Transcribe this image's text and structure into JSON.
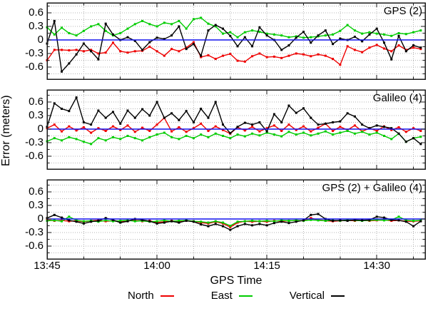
{
  "figure": {
    "xlabel": "GPS Time",
    "ylabel": "Error (meters)"
  },
  "axis": {
    "x_tick_labels": [
      "13:45",
      "14:00",
      "14:15",
      "14:30"
    ],
    "x_tick_minutes": [
      0,
      15,
      30,
      45
    ],
    "x_minor_step_minutes": 5,
    "x_total_minutes": 51.6,
    "y_tick_labels": [
      "0.6",
      "0.3",
      "0",
      "-0.3",
      "-0.6"
    ],
    "y_tick_values": [
      0.6,
      0.3,
      0,
      -0.3,
      -0.6
    ],
    "y_minor_step": 0.15,
    "ylim": [
      -0.85,
      0.85
    ],
    "grid": "dotted, on major and minor ticks"
  },
  "colors": {
    "north": "#ee0000",
    "east": "#00cc00",
    "vertical": "#000000",
    "zero_line": "#1414ee",
    "grid": "#b4b4b4",
    "border": "#1a1a1a"
  },
  "legend": {
    "items": [
      {
        "label": "North",
        "color": "#ee0000"
      },
      {
        "label": "East",
        "color": "#00cc00"
      },
      {
        "label": "Vertical",
        "color": "#000000"
      }
    ]
  },
  "chart_data": [
    {
      "type": "line",
      "title": "GPS (2)",
      "x_start_label": "13:45",
      "x_step_minutes": 1,
      "n_points": 52,
      "ylim": [
        -0.85,
        0.85
      ],
      "zero_reference_line": 0,
      "series": [
        {
          "name": "North",
          "color": "#ee0000",
          "values": [
            -0.45,
            -0.22,
            -0.22,
            -0.23,
            -0.22,
            -0.25,
            -0.22,
            -0.3,
            -0.28,
            -0.06,
            -0.25,
            -0.28,
            -0.25,
            -0.24,
            -0.15,
            -0.25,
            -0.35,
            -0.2,
            -0.25,
            -0.17,
            -0.05,
            -0.38,
            -0.34,
            -0.42,
            -0.35,
            -0.31,
            -0.46,
            -0.48,
            -0.36,
            -0.3,
            -0.38,
            -0.37,
            -0.4,
            -0.35,
            -0.3,
            -0.32,
            -0.36,
            -0.32,
            -0.35,
            -0.42,
            -0.55,
            -0.14,
            -0.22,
            -0.27,
            -0.17,
            -0.11,
            -0.19,
            -0.25,
            -0.12,
            -0.22,
            -0.17,
            -0.2
          ]
        },
        {
          "name": "East",
          "color": "#00cc00",
          "values": [
            0.28,
            0.12,
            0.27,
            0.15,
            0.1,
            0.2,
            0.3,
            0.35,
            0.2,
            0.1,
            0.15,
            0.25,
            0.35,
            0.42,
            0.35,
            0.3,
            0.38,
            0.35,
            0.42,
            0.25,
            0.46,
            0.49,
            0.36,
            0.3,
            0.14,
            0.17,
            0.06,
            0.17,
            0.21,
            0.18,
            0.14,
            0.12,
            0.1,
            0.06,
            0.08,
            0.05,
            0.06,
            0.08,
            0.1,
            0.12,
            0.2,
            0.33,
            0.21,
            0.14,
            0.17,
            0.14,
            0.12,
            0.09,
            0.15,
            0.13,
            0.17,
            0.21
          ]
        },
        {
          "name": "Vertical",
          "color": "#000000",
          "values": [
            -0.08,
            0.42,
            -0.7,
            -0.52,
            -0.32,
            -0.08,
            -0.25,
            -0.43,
            0.36,
            0.12,
            0.0,
            0.06,
            -0.02,
            -0.22,
            -0.05,
            0.05,
            0.02,
            0.1,
            0.3,
            -0.2,
            -0.09,
            -0.35,
            0.21,
            0.33,
            0.25,
            0.09,
            -0.14,
            0.06,
            -0.14,
            0.28,
            0.1,
            0.0,
            -0.22,
            -0.12,
            0.05,
            0.18,
            -0.06,
            0.1,
            0.21,
            -0.09,
            0.03,
            0.0,
            0.07,
            -0.03,
            0.12,
            0.25,
            -0.06,
            -0.43,
            0.09,
            -0.25,
            -0.12,
            -0.17
          ]
        }
      ]
    },
    {
      "type": "line",
      "title": "Galileo (4)",
      "x_start_label": "13:45",
      "x_step_minutes": 1,
      "n_points": 52,
      "ylim": [
        -0.85,
        0.85
      ],
      "zero_reference_line": 0,
      "series": [
        {
          "name": "North",
          "color": "#ee0000",
          "values": [
            0.02,
            0.1,
            -0.05,
            0.06,
            -0.03,
            0.04,
            -0.08,
            0.02,
            -0.04,
            0.06,
            -0.02,
            0.08,
            -0.06,
            0.03,
            -0.04,
            0.1,
            0.25,
            -0.05,
            0.04,
            -0.06,
            0.02,
            0.12,
            -0.04,
            0.06,
            -0.02,
            -0.1,
            0.04,
            -0.03,
            0.05,
            -0.05,
            0.02,
            0.08,
            -0.04,
            0.1,
            -0.02,
            0.06,
            -0.05,
            0.03,
            0.12,
            -0.04,
            0.05,
            -0.02,
            0.08,
            -0.05,
            0.02,
            -0.04,
            0.06,
            -0.02,
            0.04,
            -0.06,
            0.02,
            -0.04
          ]
        },
        {
          "name": "East",
          "color": "#00cc00",
          "values": [
            -0.27,
            -0.2,
            -0.25,
            -0.18,
            -0.22,
            -0.28,
            -0.33,
            -0.2,
            -0.25,
            -0.18,
            -0.22,
            -0.15,
            -0.2,
            -0.25,
            -0.18,
            -0.12,
            -0.08,
            -0.18,
            -0.22,
            -0.15,
            -0.2,
            -0.12,
            -0.18,
            -0.1,
            -0.15,
            -0.2,
            -0.12,
            -0.16,
            -0.1,
            -0.14,
            -0.08,
            -0.12,
            -0.16,
            -0.06,
            -0.12,
            -0.08,
            -0.14,
            -0.1,
            -0.05,
            -0.12,
            -0.08,
            -0.04,
            -0.1,
            -0.06,
            -0.12,
            -0.08,
            -0.15,
            -0.22,
            -0.1,
            -0.28,
            -0.2,
            -0.17
          ]
        },
        {
          "name": "Vertical",
          "color": "#000000",
          "values": [
            0.05,
            0.57,
            0.45,
            0.4,
            0.7,
            0.15,
            0.1,
            0.41,
            0.25,
            0.38,
            0.12,
            0.41,
            0.25,
            0.44,
            0.3,
            0.6,
            0.25,
            0.35,
            0.2,
            0.4,
            0.15,
            0.45,
            0.25,
            0.6,
            0.1,
            -0.09,
            0.05,
            0.14,
            0.1,
            0.15,
            -0.05,
            0.33,
            0.15,
            0.52,
            0.36,
            0.46,
            0.25,
            0.1,
            0.12,
            0.15,
            0.17,
            0.35,
            0.28,
            0.1,
            0.02,
            0.08,
            0.05,
            0.02,
            -0.1,
            -0.28,
            -0.2,
            -0.33
          ]
        }
      ]
    },
    {
      "type": "line",
      "title": "GPS (2) + Galileo (4)",
      "x_start_label": "13:45",
      "x_step_minutes": 1,
      "n_points": 52,
      "ylim": [
        -0.85,
        0.85
      ],
      "zero_reference_line": 0,
      "series": [
        {
          "name": "North",
          "color": "#ee0000",
          "values": [
            -0.02,
            -0.04,
            -0.03,
            -0.05,
            -0.04,
            -0.06,
            -0.04,
            -0.03,
            -0.05,
            -0.04,
            -0.06,
            -0.04,
            -0.03,
            -0.05,
            -0.04,
            -0.08,
            -0.06,
            -0.04,
            -0.06,
            -0.04,
            -0.05,
            -0.08,
            -0.1,
            -0.06,
            -0.1,
            -0.18,
            -0.08,
            -0.05,
            -0.06,
            -0.05,
            -0.06,
            -0.04,
            -0.05,
            -0.04,
            -0.03,
            -0.04,
            0.02,
            -0.02,
            -0.04,
            -0.05,
            -0.04,
            -0.03,
            -0.04,
            -0.03,
            -0.04,
            -0.03,
            -0.02,
            -0.04,
            -0.03,
            -0.05,
            -0.05,
            -0.04
          ]
        },
        {
          "name": "East",
          "color": "#00cc00",
          "values": [
            -0.04,
            -0.03,
            -0.05,
            0.05,
            -0.03,
            -0.05,
            -0.04,
            -0.06,
            -0.03,
            -0.05,
            -0.04,
            -0.03,
            -0.05,
            -0.04,
            -0.06,
            -0.05,
            -0.03,
            -0.05,
            -0.04,
            -0.03,
            -0.05,
            -0.06,
            -0.08,
            -0.05,
            -0.08,
            -0.15,
            -0.06,
            -0.05,
            -0.04,
            -0.05,
            -0.04,
            -0.05,
            -0.03,
            -0.04,
            -0.03,
            -0.04,
            -0.02,
            -0.03,
            -0.04,
            -0.03,
            -0.04,
            -0.02,
            -0.03,
            -0.04,
            -0.03,
            -0.02,
            -0.03,
            -0.02,
            0.05,
            -0.03,
            -0.04,
            -0.03
          ]
        },
        {
          "name": "Vertical",
          "color": "#000000",
          "values": [
            0.02,
            0.09,
            0.03,
            -0.03,
            -0.06,
            -0.1,
            -0.06,
            -0.04,
            0.02,
            -0.02,
            -0.08,
            -0.05,
            0.0,
            -0.02,
            -0.05,
            -0.1,
            -0.08,
            -0.05,
            -0.08,
            -0.04,
            -0.06,
            -0.12,
            -0.16,
            -0.11,
            -0.16,
            -0.24,
            -0.16,
            -0.11,
            -0.14,
            -0.11,
            -0.14,
            -0.09,
            -0.06,
            -0.09,
            -0.06,
            -0.03,
            0.09,
            0.11,
            0.0,
            -0.04,
            -0.03,
            -0.04,
            -0.02,
            -0.03,
            -0.02,
            0.05,
            0.03,
            -0.02,
            -0.03,
            -0.06,
            -0.16,
            -0.05
          ]
        }
      ]
    }
  ]
}
